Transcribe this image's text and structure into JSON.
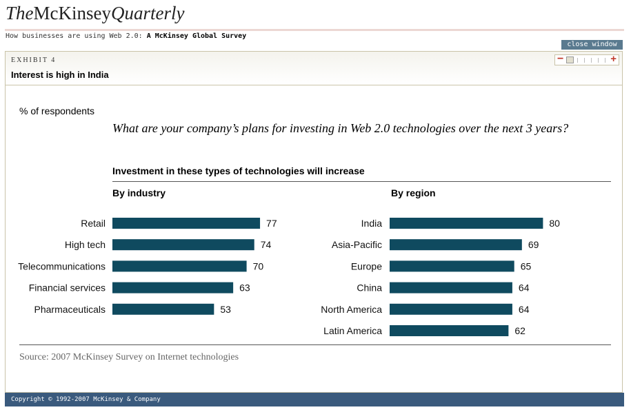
{
  "header": {
    "logo_the": "The",
    "logo_mckinsey": "McKinsey",
    "logo_quarterly": "Quarterly",
    "breadcrumb_prefix": "How businesses are using Web 2.0:",
    "breadcrumb_title": "A McKinsey Global Survey",
    "close_label": "close window"
  },
  "exhibit": {
    "label": "EXHIBIT 4",
    "title": "Interest is high in India"
  },
  "zoom": {
    "minus": "−",
    "plus": "+"
  },
  "colors": {
    "bar": "#0f4a5f",
    "footer": "#3a5a7d",
    "close_button": "#5a7a8f",
    "accent": "#c0392b"
  },
  "chart_data": [
    {
      "type": "bar",
      "orientation": "horizontal",
      "title": "By industry",
      "categories": [
        "Retail",
        "High tech",
        "Telecommunications",
        "Financial services",
        "Pharmaceuticals"
      ],
      "values": [
        77,
        74,
        70,
        63,
        53
      ],
      "xlim": [
        0,
        100
      ],
      "grid": false
    },
    {
      "type": "bar",
      "orientation": "horizontal",
      "title": "By region",
      "categories": [
        "India",
        "Asia-Pacific",
        "Europe",
        "China",
        "North America",
        "Latin America"
      ],
      "values": [
        80,
        69,
        65,
        64,
        64,
        62
      ],
      "xlim": [
        0,
        100
      ],
      "grid": false
    }
  ],
  "chart_text": {
    "unit_label": "% of respondents",
    "question": "What are your company’s plans for investing in Web 2.0 technologies over the next 3 years?",
    "subtitle": "Investment in these types of technologies will increase",
    "source": "Source: 2007 McKinsey Survey on Internet technologies"
  },
  "footer": {
    "copyright": "Copyright © 1992-2007 McKinsey & Company"
  }
}
